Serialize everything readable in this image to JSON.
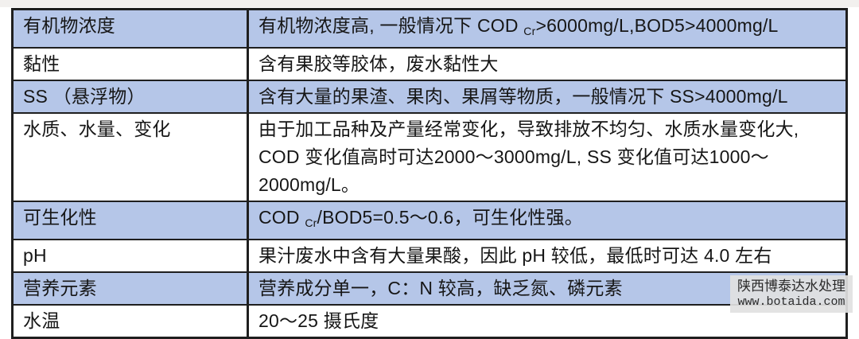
{
  "table": {
    "rows": [
      {
        "term": "有机物浓度",
        "shaded": true,
        "desc": [
          {
            "t": "有机物浓度高, 一般情况下 COD "
          },
          {
            "t": "Cr",
            "sub": true
          },
          {
            "t": ">6000mg/L,BOD5>4000mg/L"
          }
        ]
      },
      {
        "term": "黏性",
        "shaded": false,
        "desc": [
          {
            "t": "含有果胶等胶体，废水黏性大"
          }
        ]
      },
      {
        "term": "SS （悬浮物）",
        "shaded": true,
        "desc": [
          {
            "t": "含有大量的果渣、果肉、果屑等物质，一般情况下 SS>4000mg/L"
          }
        ]
      },
      {
        "term": "水质、水量、变化",
        "shaded": false,
        "desc": [
          {
            "t": "由于加工品种及产量经常变化，导致排放不均匀、水质水量变化大, COD 变化值高时可达2000～3000mg/L, SS 变化值可达1000～2000mg/L。"
          }
        ]
      },
      {
        "term": "可生化性",
        "shaded": true,
        "desc": [
          {
            "t": "COD "
          },
          {
            "t": "Cr",
            "sub": true
          },
          {
            "t": "/BOD5=0.5～0.6，可生化性强。"
          }
        ]
      },
      {
        "term": "pH",
        "shaded": false,
        "desc": [
          {
            "t": "果汁废水中含有大量果酸，因此 pH 较低，最低时可达 4.0 左右"
          }
        ]
      },
      {
        "term": "营养元素",
        "shaded": true,
        "desc": [
          {
            "t": "营养成分单一，C：N 较高，缺乏氮、磷元素"
          }
        ]
      },
      {
        "term": "水温",
        "shaded": false,
        "desc": [
          {
            "t": "20～25 摄氏度"
          }
        ]
      }
    ]
  },
  "watermark": {
    "line1": "陕西博泰达水处理",
    "line2": "www.botaida.com"
  },
  "colors": {
    "row_shaded": "#b5c6e8",
    "row_plain": "#ffffff",
    "border": "#1f1f1f",
    "text": "#161616"
  }
}
